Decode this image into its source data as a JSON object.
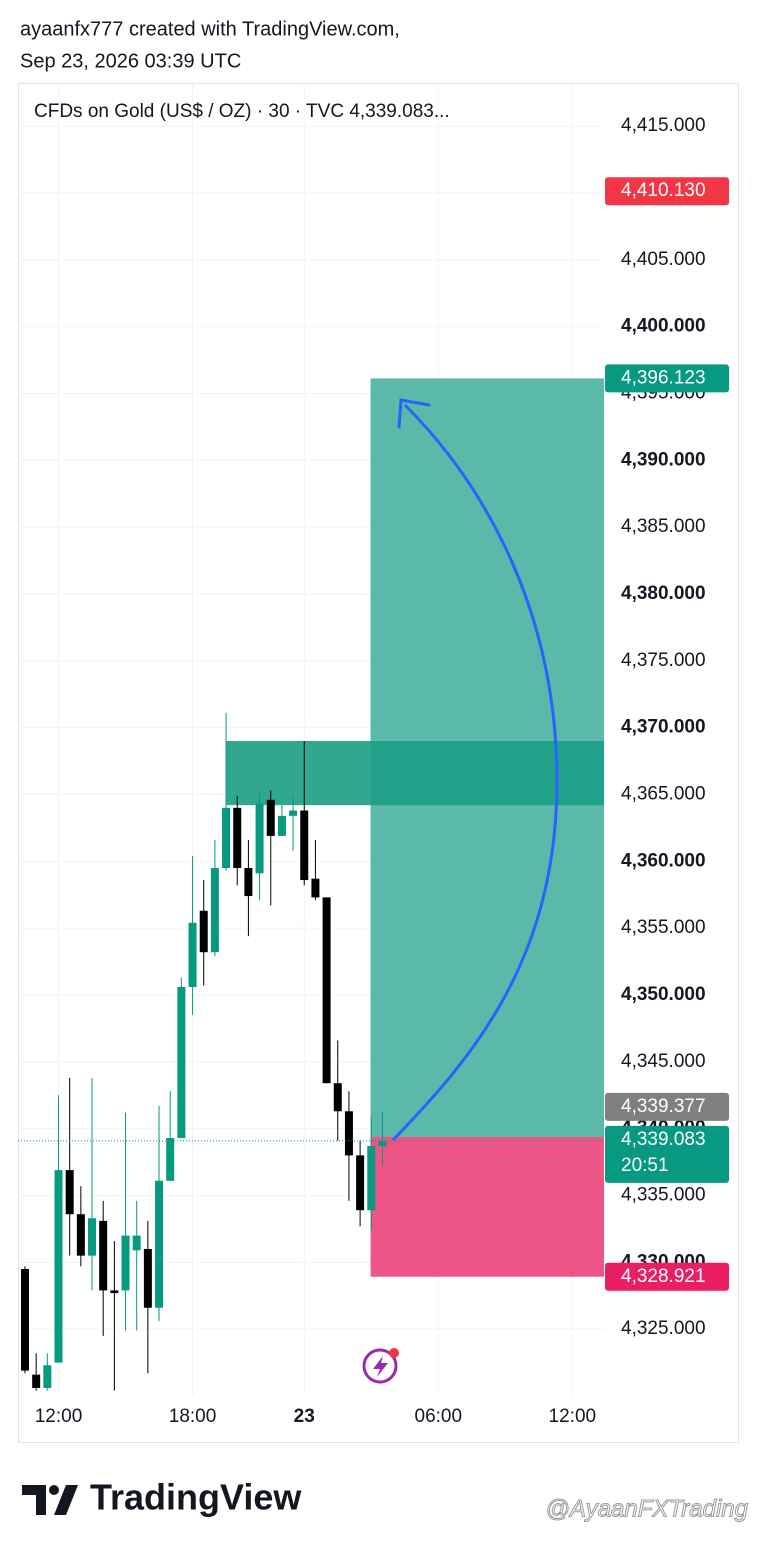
{
  "header": {
    "author_line": "ayaanfx777 created with TradingView.com,",
    "timestamp": "Sep 23, 2026 03:39 UTC"
  },
  "chart_data": {
    "type": "candlestick",
    "title": "CFDs on Gold (US$ / OZ) · 30 · TVC  4,339.083...",
    "categories": [
      null,
      null,
      null,
      "12:00",
      null,
      null,
      null,
      null,
      null,
      null,
      null,
      null,
      null,
      null,
      null,
      "18:00",
      null,
      null,
      null,
      null,
      null,
      null,
      null,
      null,
      null,
      "23",
      null,
      null,
      null,
      null,
      null,
      null,
      null,
      null,
      null,
      null,
      null,
      "06:00",
      null,
      null,
      null,
      null,
      null,
      null,
      null,
      null,
      null,
      null,
      null,
      "12:00",
      null,
      null
    ],
    "open": [
      4329.5,
      4321.6,
      4320.6,
      4322.5,
      4336.9,
      4333.6,
      4330.5,
      4333.1,
      4327.9,
      4327.9,
      4330.9,
      4331.0,
      4326.6,
      4336.1,
      4339.3,
      4350.6,
      4356.3,
      4353.2,
      4359.5,
      4364.0,
      4359.5,
      4359.1,
      4364.6,
      4361.9,
      4363.4,
      4363.8,
      4358.7,
      4357.3,
      4343.4,
      4341.3,
      4338.0,
      4333.9,
      4338.7,
      null,
      null,
      null,
      null,
      null,
      null,
      null,
      null,
      null,
      null,
      null,
      null,
      null,
      null,
      null,
      null,
      null,
      null,
      null
    ],
    "high": [
      4329.7,
      4323.2,
      4323.2,
      4342.5,
      4343.8,
      4335.7,
      4343.8,
      4334.6,
      4331.6,
      4341.2,
      4334.6,
      4333.1,
      4341.7,
      4342.8,
      4351.3,
      4360.4,
      4358.6,
      4361.6,
      4371.1,
      4364.9,
      4361.6,
      4365.3,
      4365.3,
      4364.2,
      4364.9,
      4369.0,
      4361.6,
      4357.3,
      4346.6,
      4342.8,
      4339.1,
      4341.0,
      4341.3,
      null,
      null,
      null,
      null,
      null,
      null,
      null,
      null,
      null,
      null,
      null,
      null,
      null,
      null,
      null,
      null,
      null,
      null,
      null
    ],
    "low": [
      4321.7,
      4320.4,
      4320.4,
      4322.5,
      4330.5,
      4329.7,
      4327.9,
      4324.5,
      4320.4,
      4324.9,
      4324.9,
      4321.7,
      4325.6,
      4336.1,
      4339.3,
      4348.5,
      4350.7,
      4352.9,
      4359.3,
      4358.2,
      4354.4,
      4357.1,
      4356.7,
      4361.9,
      4360.8,
      4358.2,
      4357.1,
      4343.4,
      4339.1,
      4334.6,
      4332.7,
      4332.4,
      4337.2,
      null,
      null,
      null,
      null,
      null,
      null,
      null,
      null,
      null,
      null,
      null,
      null,
      null,
      null,
      null,
      null,
      null,
      null,
      null
    ],
    "close": [
      4321.9,
      4320.6,
      4322.3,
      4336.9,
      4333.6,
      4330.5,
      4333.3,
      4327.9,
      4327.7,
      4332.0,
      4332.0,
      4326.6,
      4336.1,
      4339.3,
      4350.6,
      4355.4,
      4353.2,
      4359.5,
      4364.0,
      4359.5,
      4357.4,
      4364.3,
      4361.9,
      4363.4,
      4363.8,
      4358.6,
      4357.3,
      4343.4,
      4341.3,
      4338.0,
      4333.9,
      4338.7,
      4339.083,
      null,
      null,
      null,
      null,
      null,
      null,
      null,
      null,
      null,
      null,
      null,
      null,
      null,
      null,
      null,
      null,
      null,
      null,
      null
    ],
    "up_color": "#089981",
    "down_color": "#000000",
    "ylim": [
      4320,
      4418
    ],
    "yticks": [
      {
        "value": 4325,
        "label": "4,325.000"
      },
      {
        "value": 4330,
        "label": "4,330.000"
      },
      {
        "value": 4335,
        "label": "4,335.000"
      },
      {
        "value": 4340,
        "label": "4,340.000"
      },
      {
        "value": 4345,
        "label": "4,345.000"
      },
      {
        "value": 4350,
        "label": "4,350.000"
      },
      {
        "value": 4355,
        "label": "4,355.000"
      },
      {
        "value": 4360,
        "label": "4,360.000"
      },
      {
        "value": 4365,
        "label": "4,365.000"
      },
      {
        "value": 4370,
        "label": "4,370.000"
      },
      {
        "value": 4375,
        "label": "4,375.000"
      },
      {
        "value": 4380,
        "label": "4,380.000"
      },
      {
        "value": 4385,
        "label": "4,385.000"
      },
      {
        "value": 4390,
        "label": "4,390.000"
      },
      {
        "value": 4395,
        "label": "4,395.000"
      },
      {
        "value": 4400,
        "label": "4,400.000"
      },
      {
        "value": 4405,
        "label": "4,405.000"
      },
      {
        "value": 4410,
        "label": "4,410.000"
      },
      {
        "value": 4415,
        "label": "4,415.000"
      }
    ],
    "grid": true,
    "zone": {
      "range": [
        4364.2,
        4369.0
      ],
      "color": "#1b9d86"
    },
    "position": {
      "entry": {
        "value": 4339.377,
        "label": "4,339.377"
      },
      "target": {
        "value": 4396.123,
        "label": "4,396.123"
      },
      "stop": {
        "value": 4328.921,
        "label": "4,328.921"
      },
      "profit_color": "#5ab9a8",
      "loss_color": "#ee5587"
    },
    "alert": {
      "value": 4410.13,
      "label": "4,410.130",
      "color": "#f23645"
    },
    "last_price": {
      "value": 4339.083,
      "label": "4,339.083",
      "countdown": "20:51",
      "color": "#089981"
    }
  },
  "footer": {
    "brand": "TradingView",
    "watermark": "@AyaanFXTrading"
  }
}
